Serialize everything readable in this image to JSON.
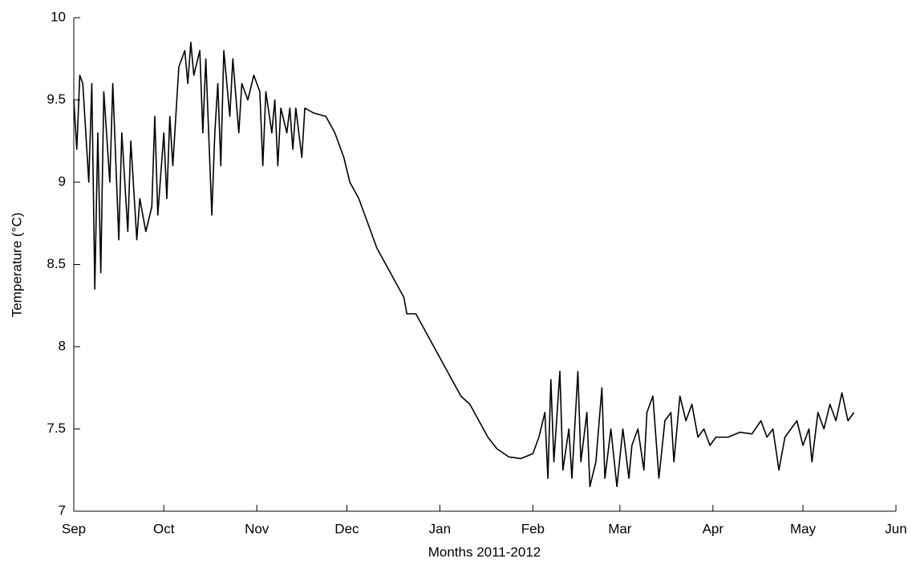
{
  "chart_data": {
    "type": "line",
    "x_label": "Months 2011-2012",
    "y_label": "Temperature (°C)",
    "xlim": [
      0,
      274
    ],
    "xticks": [
      {
        "value": 0,
        "label": "Sep"
      },
      {
        "value": 30,
        "label": "Oct"
      },
      {
        "value": 61,
        "label": "Nov"
      },
      {
        "value": 91,
        "label": "Dec"
      },
      {
        "value": 122,
        "label": "Jan"
      },
      {
        "value": 153,
        "label": "Feb"
      },
      {
        "value": 182,
        "label": "Mar"
      },
      {
        "value": 213,
        "label": "Apr"
      },
      {
        "value": 243,
        "label": "May"
      },
      {
        "value": 274,
        "label": "Jun"
      }
    ],
    "ylim": [
      7,
      10
    ],
    "yticks": [
      7,
      7.5,
      8,
      8.5,
      9,
      9.5,
      10
    ],
    "grid": false,
    "color": "#000000",
    "x": [
      0,
      1,
      2,
      3,
      5,
      6,
      7,
      8,
      9,
      10,
      12,
      13,
      15,
      16,
      18,
      19,
      21,
      22,
      24,
      26,
      27,
      28,
      30,
      31,
      32,
      33,
      35,
      37,
      38,
      39,
      40,
      42,
      43,
      44,
      46,
      47,
      48,
      49,
      50,
      52,
      53,
      55,
      56,
      58,
      60,
      62,
      63,
      64,
      66,
      67,
      68,
      69,
      71,
      72,
      73,
      74,
      76,
      77,
      80,
      84,
      87,
      90,
      92,
      95,
      98,
      101,
      104,
      107,
      110,
      111,
      114,
      117,
      120,
      123,
      126,
      129,
      132,
      135,
      138,
      141,
      145,
      149,
      153,
      155,
      157,
      158,
      159,
      160,
      162,
      163,
      165,
      166,
      168,
      169,
      171,
      172,
      174,
      176,
      177,
      179,
      181,
      183,
      185,
      186,
      188,
      190,
      191,
      193,
      195,
      197,
      199,
      200,
      202,
      204,
      206,
      208,
      210,
      212,
      214,
      218,
      222,
      226,
      229,
      231,
      233,
      235,
      237,
      239,
      241,
      243,
      245,
      246,
      248,
      250,
      252,
      254,
      256,
      258,
      260
    ],
    "values": [
      9.5,
      9.2,
      9.65,
      9.6,
      9.0,
      9.6,
      8.35,
      9.3,
      8.45,
      9.55,
      9.0,
      9.6,
      8.65,
      9.3,
      8.7,
      9.25,
      8.65,
      8.9,
      8.7,
      8.85,
      9.4,
      8.8,
      9.3,
      8.9,
      9.4,
      9.1,
      9.7,
      9.8,
      9.6,
      9.85,
      9.65,
      9.8,
      9.3,
      9.75,
      8.8,
      9.3,
      9.6,
      9.1,
      9.8,
      9.4,
      9.75,
      9.3,
      9.6,
      9.5,
      9.65,
      9.55,
      9.1,
      9.55,
      9.3,
      9.5,
      9.1,
      9.45,
      9.3,
      9.45,
      9.2,
      9.45,
      9.15,
      9.45,
      9.42,
      9.4,
      9.3,
      9.15,
      9.0,
      8.9,
      8.75,
      8.6,
      8.5,
      8.4,
      8.3,
      8.2,
      8.2,
      8.1,
      8.0,
      7.9,
      7.8,
      7.7,
      7.65,
      7.55,
      7.45,
      7.38,
      7.33,
      7.32,
      7.35,
      7.45,
      7.6,
      7.2,
      7.8,
      7.3,
      7.85,
      7.25,
      7.5,
      7.2,
      7.85,
      7.3,
      7.6,
      7.15,
      7.3,
      7.75,
      7.2,
      7.5,
      7.15,
      7.5,
      7.2,
      7.4,
      7.5,
      7.25,
      7.6,
      7.7,
      7.2,
      7.55,
      7.6,
      7.3,
      7.7,
      7.55,
      7.65,
      7.45,
      7.5,
      7.4,
      7.45,
      7.45,
      7.48,
      7.47,
      7.55,
      7.45,
      7.5,
      7.25,
      7.45,
      7.5,
      7.55,
      7.4,
      7.5,
      7.3,
      7.6,
      7.5,
      7.65,
      7.55,
      7.72,
      7.55,
      7.6
    ]
  }
}
